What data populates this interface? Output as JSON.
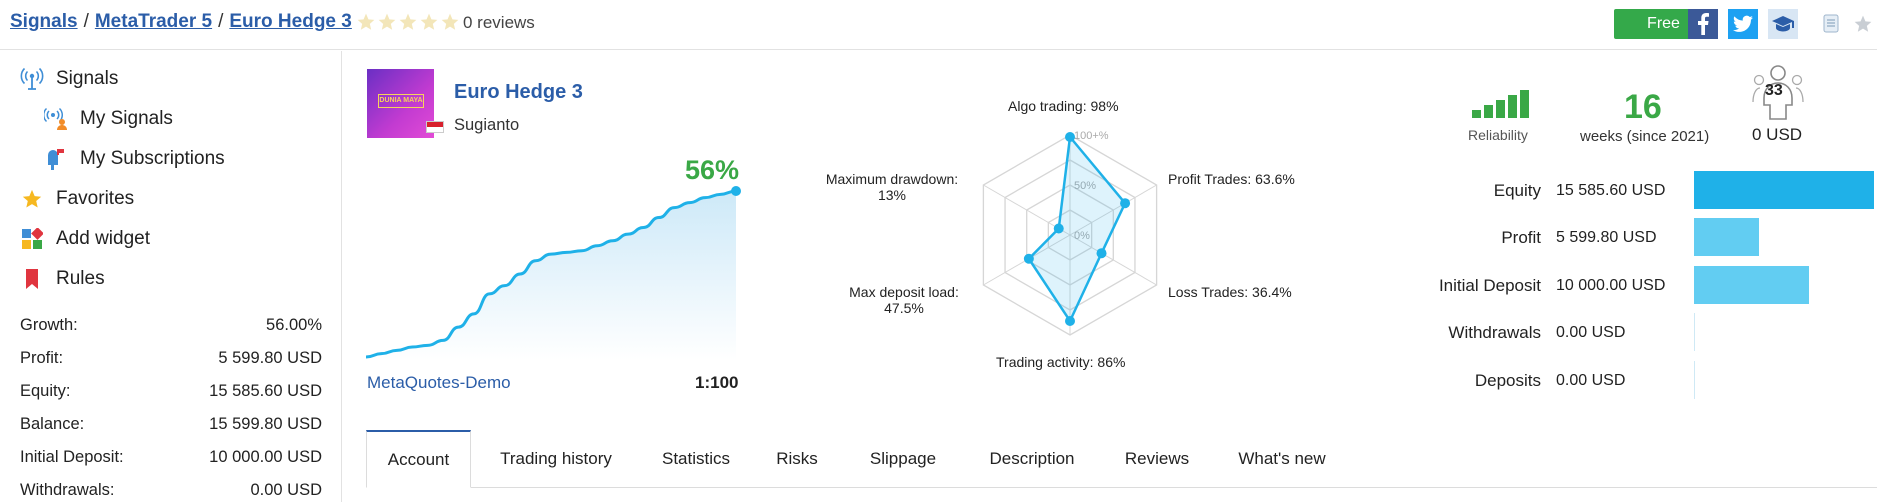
{
  "breadcrumb": {
    "items": [
      "Signals",
      "MetaTrader 5",
      "Euro Hedge 3"
    ],
    "separator": "/"
  },
  "rating": {
    "stars": 0,
    "max": 5,
    "reviews": "0 reviews"
  },
  "header_actions": {
    "free_label": "Free",
    "icons": [
      "facebook-icon",
      "twitter-icon",
      "graduation-cap-icon",
      "bookmark-icon",
      "star-icon"
    ]
  },
  "sidebar": {
    "items": [
      {
        "label": "Signals",
        "icon": "antenna-icon"
      },
      {
        "label": "My Signals",
        "icon": "my-signals-icon"
      },
      {
        "label": "My Subscriptions",
        "icon": "mailbox-icon"
      },
      {
        "label": "Favorites",
        "icon": "star-icon"
      },
      {
        "label": "Add widget",
        "icon": "widget-icon"
      },
      {
        "label": "Rules",
        "icon": "bookmark-icon"
      }
    ],
    "stats": [
      {
        "label": "Growth:",
        "value": "56.00%"
      },
      {
        "label": "Profit:",
        "value": "5 599.80 USD"
      },
      {
        "label": "Equity:",
        "value": "15 585.60 USD"
      },
      {
        "label": "Balance:",
        "value": "15 599.80 USD"
      },
      {
        "label": "Initial Deposit:",
        "value": "10 000.00 USD"
      },
      {
        "label": "Withdrawals:",
        "value": "0.00 USD"
      }
    ]
  },
  "signal": {
    "name": "Euro Hedge 3",
    "author": "Sugianto",
    "logo_text": "DUNIA MAYA",
    "growth": "56%",
    "broker": "MetaQuotes-Demo",
    "leverage": "1:100",
    "growth_curve": [
      0,
      2,
      4,
      6,
      7,
      10,
      18,
      26,
      38,
      43,
      50,
      58,
      62,
      63,
      64,
      67,
      70,
      74,
      78,
      84,
      90,
      93,
      96,
      98,
      100
    ]
  },
  "radar": {
    "scale_labels": [
      "100+%",
      "50%",
      "0%"
    ],
    "axes": [
      {
        "label": "Algo trading: 98%",
        "value": 98
      },
      {
        "label": "Profit Trades: 63.6%",
        "value": 63.6
      },
      {
        "label": "Loss Trades: 36.4%",
        "value": 36.4
      },
      {
        "label": "Trading activity: 86%",
        "value": 86
      },
      {
        "label_line1": "Max deposit load:",
        "label_line2": "47.5%",
        "value": 47.5
      },
      {
        "label_line1": "Maximum drawdown:",
        "label_line2": "13%",
        "value": 13
      }
    ]
  },
  "summary": {
    "reliability_label": "Reliability",
    "reliability_level": 5,
    "weeks": "16",
    "weeks_label": "weeks (since 2021)",
    "subscribers": "33",
    "subscription_cost": "0 USD"
  },
  "equity_chart": {
    "rows": [
      {
        "label": "Equity",
        "value": "15 585.60 USD",
        "amount": 15585.6,
        "color": "#1fb1e8"
      },
      {
        "label": "Profit",
        "value": "5 599.80 USD",
        "amount": 5599.8,
        "color": "#62cdf2"
      },
      {
        "label": "Initial Deposit",
        "value": "10 000.00 USD",
        "amount": 10000,
        "color": "#62cdf2"
      },
      {
        "label": "Withdrawals",
        "value": "0.00 USD",
        "amount": 0,
        "color": "#62cdf2"
      },
      {
        "label": "Deposits",
        "value": "0.00 USD",
        "amount": 0,
        "color": "#62cdf2"
      }
    ]
  },
  "tabs": [
    {
      "label": "Account",
      "active": true
    },
    {
      "label": "Trading history",
      "active": false
    },
    {
      "label": "Statistics",
      "active": false
    },
    {
      "label": "Risks",
      "active": false
    },
    {
      "label": "Slippage",
      "active": false
    },
    {
      "label": "Description",
      "active": false
    },
    {
      "label": "Reviews",
      "active": false
    },
    {
      "label": "What's new",
      "active": false
    }
  ]
}
